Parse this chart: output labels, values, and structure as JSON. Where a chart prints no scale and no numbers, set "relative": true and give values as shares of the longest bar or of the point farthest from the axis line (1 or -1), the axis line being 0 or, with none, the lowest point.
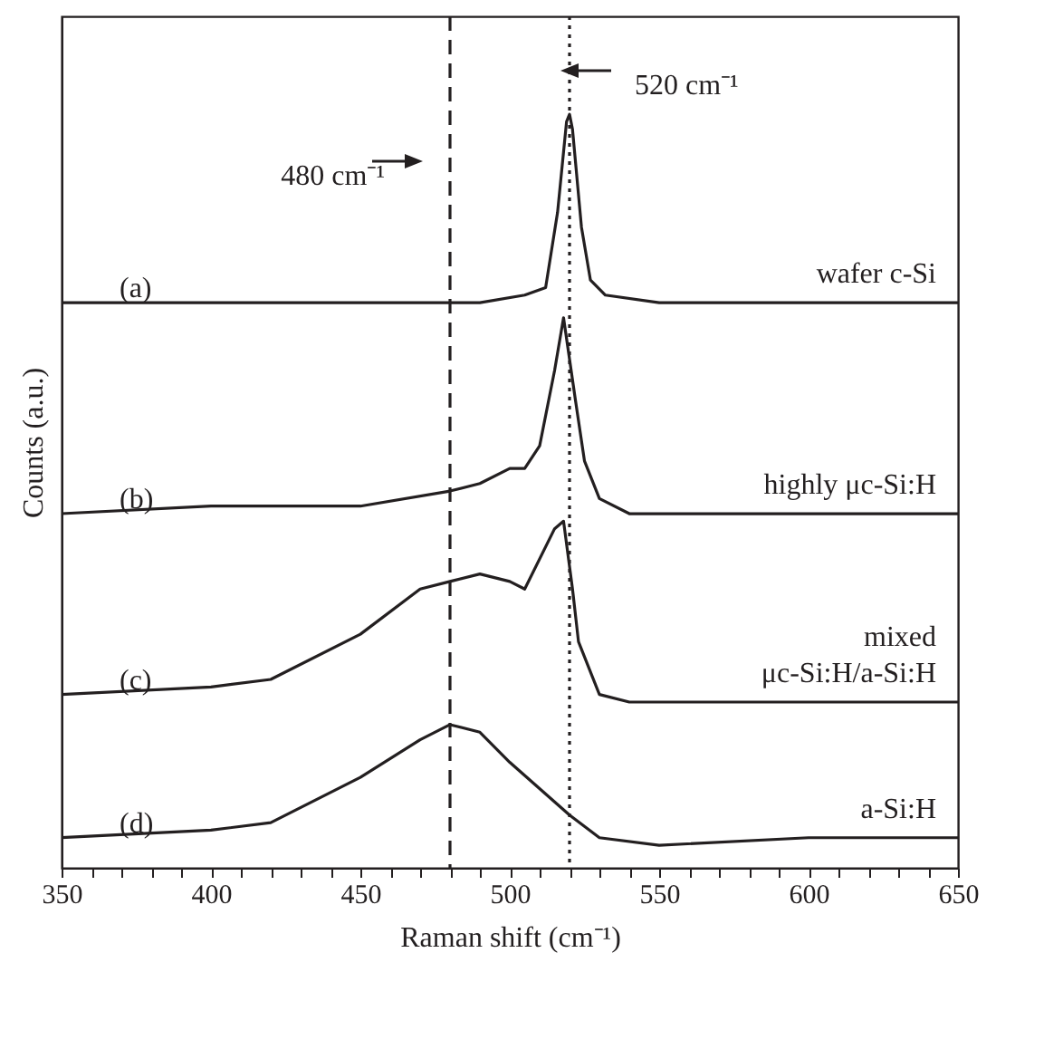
{
  "chart_data": {
    "type": "line",
    "relative": true,
    "xlabel": "Raman shift (cm⁻¹)",
    "ylabel": "Counts (a.u.)",
    "xlim": [
      350,
      650
    ],
    "xticks": [
      350,
      {
        "value": 360,
        "label": null
      },
      {
        "value": 370,
        "label": null
      },
      {
        "value": 380,
        "label": null
      },
      {
        "value": 390,
        "label": null
      },
      400,
      {
        "value": 410,
        "label": null
      },
      {
        "value": 420,
        "label": null
      },
      {
        "value": 430,
        "label": null
      },
      {
        "value": 440,
        "label": null
      },
      450,
      {
        "value": 460,
        "label": null
      },
      {
        "value": 470,
        "label": null
      },
      {
        "value": 480,
        "label": null
      },
      {
        "value": 490,
        "label": null
      },
      500,
      {
        "value": 510,
        "label": null
      },
      {
        "value": 520,
        "label": null
      },
      {
        "value": 530,
        "label": null
      },
      {
        "value": 540,
        "label": null
      },
      550,
      {
        "value": 560,
        "label": null
      },
      {
        "value": 570,
        "label": null
      },
      {
        "value": 580,
        "label": null
      },
      {
        "value": 590,
        "label": null
      },
      600,
      {
        "value": 610,
        "label": null
      },
      {
        "value": 620,
        "label": null
      },
      {
        "value": 630,
        "label": null
      },
      {
        "value": 640,
        "label": null
      },
      650
    ],
    "tick_labels": "x",
    "grid": false,
    "legend": false,
    "marker": "none",
    "line_style": "solid",
    "series": [
      {
        "name": "wafer c-Si",
        "color": "#231f20",
        "x": [
          350,
          450,
          490,
          505,
          512,
          516,
          519,
          520,
          521,
          524,
          527,
          532,
          550,
          600,
          650
        ],
        "values": [
          0.75,
          0.75,
          0.75,
          0.76,
          0.77,
          0.87,
          0.99,
          1,
          0.98,
          0.85,
          0.78,
          0.76,
          0.75,
          0.75,
          0.75
        ]
      },
      {
        "name": "highly μc-Si:H",
        "color": "#231f20",
        "x": [
          350,
          400,
          450,
          480,
          490,
          500,
          505,
          510,
          515,
          518,
          522,
          525,
          530,
          540,
          600,
          650
        ],
        "values": [
          0.47,
          0.48,
          0.48,
          0.5,
          0.51,
          0.53,
          0.53,
          0.56,
          0.66,
          0.73,
          0.62,
          0.54,
          0.49,
          0.47,
          0.47,
          0.47
        ]
      },
      {
        "name": "mixed μc-Si:H/a-Si:H",
        "color": "#231f20",
        "x": [
          350,
          400,
          420,
          450,
          470,
          480,
          490,
          500,
          505,
          515,
          518,
          521,
          523,
          530,
          540,
          560,
          600,
          650
        ],
        "values": [
          0.23,
          0.24,
          0.25,
          0.31,
          0.37,
          0.38,
          0.39,
          0.38,
          0.37,
          0.45,
          0.46,
          0.37,
          0.3,
          0.23,
          0.22,
          0.22,
          0.22,
          0.22
        ]
      },
      {
        "name": "a-Si:H",
        "color": "#231f20",
        "x": [
          350,
          400,
          420,
          450,
          470,
          480,
          490,
          500,
          520,
          530,
          550,
          600,
          650
        ],
        "values": [
          0.04,
          0.05,
          0.06,
          0.12,
          0.17,
          0.19,
          0.18,
          0.14,
          0.07,
          0.04,
          0.03,
          0.04,
          0.04
        ]
      }
    ],
    "annotations": [
      "(a)",
      "(b)",
      "(c)",
      "(d)"
    ],
    "ref_lines": [
      {
        "axis": "x",
        "value": 480,
        "label": "480 cm⁻¹",
        "line_style": "dashed",
        "color": "#231f20"
      },
      {
        "axis": "x",
        "value": 520,
        "label": "520 cm⁻¹",
        "line_style": "dotted",
        "color": "#231f20"
      }
    ]
  }
}
